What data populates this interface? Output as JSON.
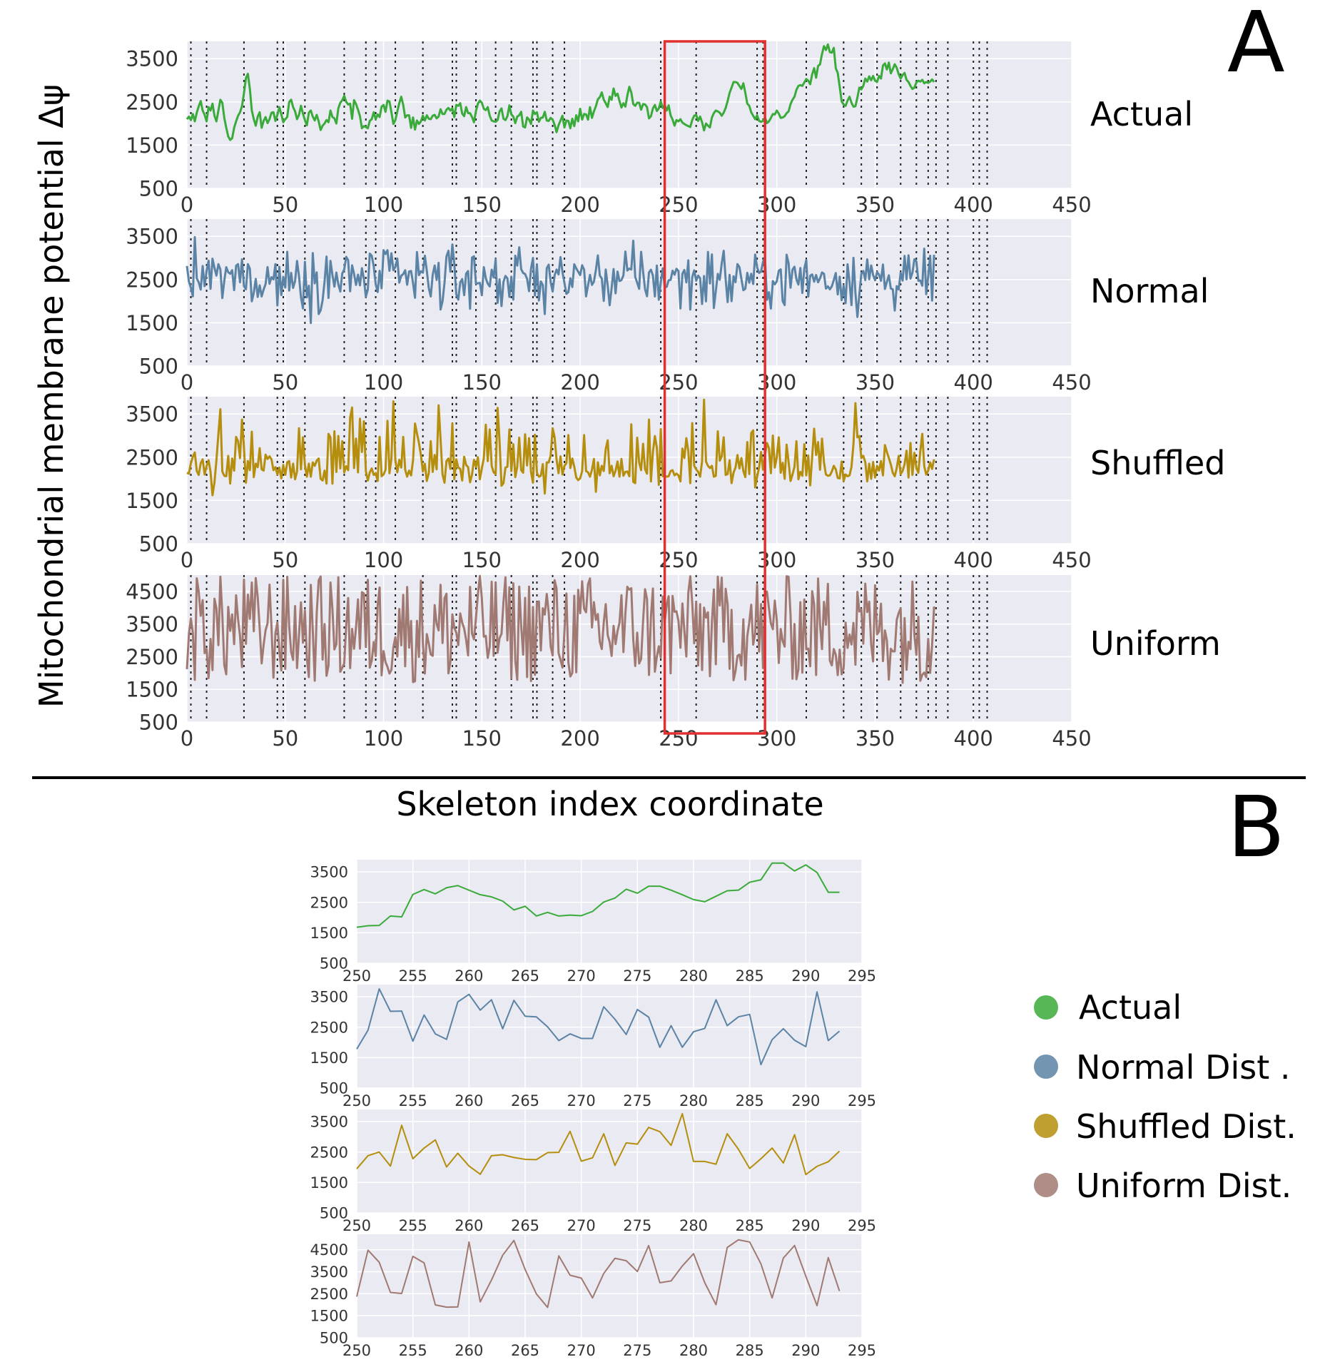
{
  "panel_a": {
    "letter": "A",
    "ylabel": "Mitochondrial membrane potential Δψ",
    "xlabel": "Skeleton index coordinate",
    "row_labels": [
      "Actual",
      "Normal",
      "Shuffled",
      "Uniform"
    ],
    "highlight_range": [
      243,
      294
    ]
  },
  "panel_b": {
    "letter": "B",
    "legend": [
      "Actual",
      "Normal Dist .",
      "Shuffled Dist.",
      "Uniform Dist."
    ]
  },
  "colors": {
    "actual": "#3aaa3a",
    "normal": "#5b83a5",
    "shuffled": "#b48e0c",
    "uniform": "#a07a72",
    "highlight": "#e03030",
    "plot_bg": "#eaeaf2",
    "grid": "#ffffff"
  },
  "chart_data": [
    {
      "type": "line",
      "panel": "A",
      "series": [
        {
          "name": "Actual",
          "color_key": "actual",
          "values": [
            2100,
            2160,
            2080,
            2220,
            2050,
            2250,
            2400,
            2520,
            2300,
            2200,
            2050,
            2380,
            2300,
            2460,
            2180,
            2050,
            2300,
            2550,
            2480,
            2130,
            1900,
            1700,
            1620,
            1660,
            1900,
            2050,
            2180,
            2260,
            2400,
            2700,
            3050,
            3150,
            2800,
            2300,
            2100,
            1950,
            2160,
            2260,
            1900,
            2060,
            2150,
            2010,
            2100,
            2250,
            2260,
            2060,
            2200,
            2380,
            2210,
            2030,
            2100,
            2150,
            2500,
            2550,
            2380,
            2280,
            2100,
            2200,
            2410,
            2230,
            2080,
            1960,
            2250,
            2300,
            2160,
            2070,
            2200,
            2050,
            1850,
            1950,
            2000,
            2080,
            2030,
            2300,
            2150,
            2120,
            2000,
            2350,
            2480,
            2540,
            2640,
            2500,
            2440,
            2460,
            2110,
            2540,
            2450,
            2320,
            2170,
            1890,
            1940,
            1920,
            1890,
            2060,
            2100,
            2260,
            2100,
            2210,
            2150,
            2390,
            2430,
            2270,
            2530,
            2510,
            2260,
            1990,
            2080,
            2280,
            2470,
            2620,
            2430,
            2140,
            2190,
            2190,
            1900,
            2140,
            1860,
            2070,
            1990,
            2050,
            2180,
            2070,
            2190,
            2110,
            2100,
            2180,
            2200,
            2120,
            2160,
            2330,
            2220,
            2220,
            2320,
            2360,
            2300,
            2350,
            2150,
            2430,
            2410,
            2470,
            2230,
            2170,
            2380,
            2240,
            2240,
            2150,
            2030,
            2290,
            2460,
            2530,
            2480,
            2340,
            2310,
            2380,
            2180,
            2070,
            2050,
            2040,
            2080,
            2280,
            2350,
            2110,
            2080,
            2170,
            2420,
            2210,
            2160,
            2010,
            2160,
            2190,
            2270,
            1930,
            1910,
            2140,
            2090,
            1990,
            2300,
            2220,
            2260,
            2040,
            2130,
            2140,
            2270,
            2070,
            2060,
            2130,
            2090,
            1970,
            1800,
            1960,
            2070,
            2180,
            1910,
            2070,
            2060,
            1890,
            2110,
            1940,
            2190,
            2050,
            2340,
            2090,
            2220,
            2210,
            2090,
            2380,
            2130,
            2280,
            2400,
            2560,
            2610,
            2720,
            2550,
            2470,
            2380,
            2620,
            2550,
            2810,
            2640,
            2690,
            2520,
            2370,
            2470,
            2390,
            2650,
            2850,
            2720,
            2450,
            2410,
            2480,
            2480,
            2320,
            2450,
            2440,
            2380,
            2120,
            2170,
            2350,
            2430,
            2290,
            2350,
            2510,
            2360,
            2430,
            2300,
            2420,
            2190,
            2090,
            1950,
            2080,
            2050,
            2100,
            2020,
            1990,
            1960,
            1940,
            1920,
            2080,
            2180,
            2200,
            2060,
            2160,
            2030,
            1840,
            2000,
            1950,
            1910,
            2140,
            2240,
            2300,
            2280,
            2250,
            2180,
            2250,
            2360,
            2520,
            2710,
            2830,
            2960,
            2960,
            2940,
            2870,
            2800,
            2930,
            2710,
            2460,
            2410,
            2260,
            2180,
            2100,
            2190,
            2060,
            2040,
            2060,
            2140,
            2010,
            2050,
            2130,
            2220,
            2210,
            2300,
            2230,
            2130,
            2140,
            2170,
            2240,
            2280,
            2450,
            2550,
            2620,
            2780,
            2870,
            2890,
            2870,
            2950,
            3030,
            2990,
            2910,
            3140,
            3280,
            3060,
            3330,
            3370,
            3610,
            3790,
            3700,
            3830,
            3650,
            3640,
            3750,
            3280,
            3170,
            2850,
            2510,
            2440,
            2410,
            2530,
            2620,
            2480,
            2390,
            2400,
            2600,
            2830,
            2790,
            2870,
            3040,
            2970,
            3090,
            3000,
            3100,
            2990,
            2960,
            3100,
            3040,
            3340,
            3390,
            3250,
            3410,
            3160,
            3260,
            3370,
            3290,
            3140,
            3040,
            3120,
            3170,
            3010,
            2960,
            2870,
            2800,
            2830,
            2950,
            2990,
            2970,
            3010,
            2930,
            2960,
            2940,
            2970,
            3020,
            2960
          ]
        },
        {
          "name": "Normal",
          "color_key": "normal",
          "values": []
        },
        {
          "name": "Shuffled",
          "color_key": "shuffled",
          "values": []
        },
        {
          "name": "Uniform",
          "color_key": "uniform",
          "values": []
        }
      ],
      "x_range": [
        0,
        408
      ],
      "xlim": [
        0,
        450
      ],
      "xticks": [
        0,
        50,
        100,
        150,
        200,
        250,
        300,
        350,
        400,
        450
      ],
      "ylim_by_row": [
        [
          500,
          3900
        ],
        [
          500,
          3900
        ],
        [
          500,
          3900
        ],
        [
          500,
          5000
        ]
      ],
      "yticks_by_row": [
        [
          500,
          1500,
          2500,
          3500
        ],
        [
          500,
          1500,
          2500,
          3500
        ],
        [
          500,
          1500,
          2500,
          3500
        ],
        [
          500,
          1500,
          2500,
          3500,
          4500
        ]
      ],
      "vlines": [
        2,
        10,
        29,
        46,
        49,
        60,
        80,
        91,
        96,
        106,
        120,
        135,
        137,
        147,
        157,
        165,
        176,
        178,
        186,
        192,
        241,
        243,
        259,
        290,
        293,
        315,
        334,
        343,
        351,
        363,
        371,
        377,
        381,
        387,
        400,
        403,
        407
      ]
    },
    {
      "type": "line",
      "panel": "B",
      "x": [
        250,
        251,
        252,
        253,
        254,
        255,
        256,
        257,
        258,
        259,
        260,
        261,
        262,
        263,
        264,
        265,
        266,
        267,
        268,
        269,
        270,
        271,
        272,
        273,
        274,
        275,
        276,
        277,
        278,
        279,
        280,
        281,
        282,
        283,
        284,
        285,
        286,
        287,
        288,
        289,
        290,
        291,
        292,
        293
      ],
      "xlim": [
        250,
        295
      ],
      "xticks": [
        250,
        255,
        260,
        265,
        270,
        275,
        280,
        285,
        290,
        295
      ],
      "series": [
        {
          "name": "Actual",
          "color_key": "actual",
          "values": [
            1680,
            1730,
            1740,
            2050,
            2020,
            2760,
            2920,
            2780,
            2980,
            3050,
            2900,
            2750,
            2680,
            2540,
            2250,
            2370,
            2050,
            2170,
            2050,
            2080,
            2060,
            2200,
            2510,
            2640,
            2930,
            2800,
            3030,
            3030,
            2900,
            2750,
            2590,
            2520,
            2700,
            2880,
            2900,
            3160,
            3240,
            3790,
            3790,
            3530,
            3730,
            3480,
            2830,
            2830
          ],
          "ylim": [
            500,
            3900
          ],
          "yticks": [
            500,
            1500,
            2500,
            3500
          ]
        },
        {
          "name": "Normal Dist .",
          "color_key": "normal",
          "values": [
            1780,
            2400,
            3760,
            3020,
            3030,
            2040,
            2900,
            2280,
            2100,
            3330,
            3580,
            3060,
            3400,
            2450,
            3380,
            2860,
            2840,
            2510,
            2060,
            2280,
            2130,
            2130,
            3170,
            2760,
            2260,
            3080,
            2830,
            1840,
            2550,
            1840,
            2350,
            2460,
            3400,
            2550,
            2840,
            2920,
            1270,
            2090,
            2450,
            2070,
            1860,
            3660,
            2060,
            2370
          ],
          "ylim": [
            500,
            3900
          ],
          "yticks": [
            500,
            1500,
            2500,
            3500
          ]
        },
        {
          "name": "Shuffled Dist.",
          "color_key": "shuffled",
          "values": [
            1950,
            2380,
            2500,
            2040,
            3380,
            2280,
            2630,
            2900,
            2010,
            2460,
            2040,
            1770,
            2380,
            2410,
            2320,
            2260,
            2250,
            2480,
            2490,
            3180,
            2200,
            2310,
            3100,
            2060,
            2800,
            2760,
            3310,
            3170,
            2720,
            3760,
            2190,
            2190,
            2100,
            3100,
            2590,
            1960,
            2280,
            2630,
            2140,
            3070,
            1760,
            2030,
            2180,
            2530
          ],
          "ylim": [
            500,
            3900
          ],
          "yticks": [
            500,
            1500,
            2500,
            3500
          ]
        },
        {
          "name": "Uniform Dist.",
          "color_key": "uniform",
          "values": [
            2370,
            4480,
            3930,
            2560,
            2510,
            4200,
            3900,
            1990,
            1890,
            1900,
            4850,
            2130,
            3120,
            4250,
            4920,
            3600,
            2490,
            1880,
            4220,
            3340,
            3210,
            2310,
            3420,
            4110,
            4000,
            3510,
            4690,
            3000,
            3080,
            3760,
            4320,
            3000,
            2000,
            4600,
            4950,
            4850,
            3860,
            2310,
            4120,
            4690,
            3300,
            1960,
            4140,
            2620
          ],
          "ylim": [
            500,
            5200
          ],
          "yticks": [
            500,
            1500,
            2500,
            3500,
            4500
          ]
        }
      ]
    }
  ]
}
